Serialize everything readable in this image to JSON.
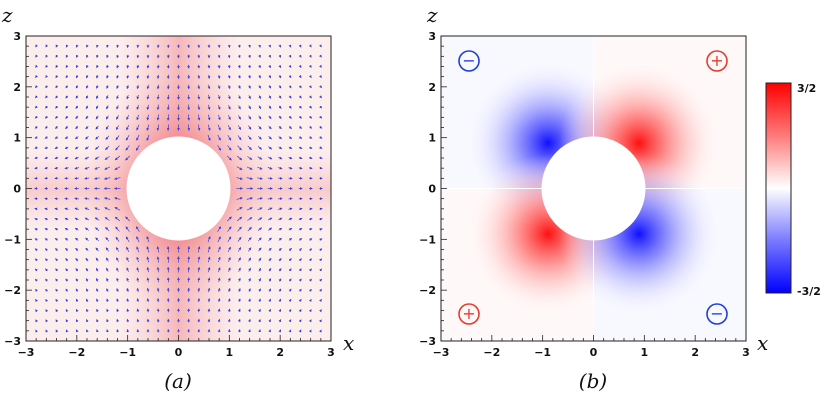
{
  "chart_data": [
    {
      "type": "heatmap",
      "panel": "(a)",
      "xlabel": "x",
      "ylabel": "z",
      "xlim": [
        -3,
        3
      ],
      "ylim": [
        -3,
        3
      ],
      "xticks": [
        "−3",
        "−2",
        "−1",
        "0",
        "1",
        "2",
        "3"
      ],
      "yticks": [
        "−3",
        "−2",
        "−1",
        "0",
        "1",
        "2",
        "3"
      ],
      "excluded_disk_radius": 1,
      "field": "vector field (arrows) over shaded magnitude",
      "colors": {
        "shade": "#e8444a",
        "arrows": "#3b3fd6"
      }
    },
    {
      "type": "heatmap",
      "panel": "(b)",
      "xlabel": "x",
      "ylabel": "z",
      "xlim": [
        -3,
        3
      ],
      "ylim": [
        -3,
        3
      ],
      "xticks": [
        "−3",
        "−2",
        "−1",
        "0",
        "1",
        "2",
        "3"
      ],
      "yticks": [
        "−3",
        "−2",
        "−1",
        "0",
        "1",
        "2",
        "3"
      ],
      "excluded_disk_radius": 1,
      "colorbar": {
        "max_label": "3/2",
        "min_label": "-3/2",
        "range": [
          -1.5,
          1.5
        ]
      },
      "quadrant_signs": [
        {
          "quadrant": "upper-left",
          "sign": "−",
          "color": "#1f3fd6"
        },
        {
          "quadrant": "upper-right",
          "sign": "+",
          "color": "#e53b2c"
        },
        {
          "quadrant": "lower-left",
          "sign": "+",
          "color": "#e53b2c"
        },
        {
          "quadrant": "lower-right",
          "sign": "−",
          "color": "#1f3fd6"
        }
      ],
      "colors": {
        "positive": "#ff0000",
        "negative": "#0000ff",
        "zero": "#ffffff"
      }
    }
  ]
}
